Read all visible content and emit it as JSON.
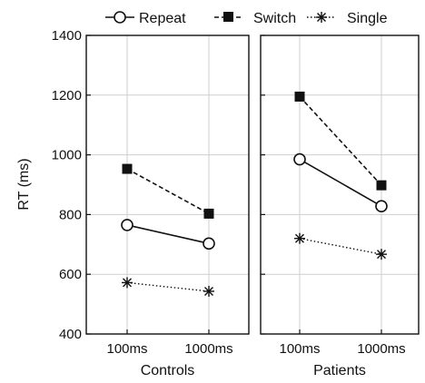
{
  "chart_data": {
    "type": "line",
    "ylabel": "RT (ms)",
    "ylim": [
      400,
      1400
    ],
    "yticks": [
      400,
      600,
      800,
      1000,
      1200,
      1400
    ],
    "grid": true,
    "legend": {
      "placement": "top",
      "entries": [
        {
          "label": "Repeat",
          "marker": "open-circle",
          "line": "solid"
        },
        {
          "label": "Switch",
          "marker": "filled-square",
          "line": "dashed"
        },
        {
          "label": "Single",
          "marker": "asterisk",
          "line": "dotted"
        }
      ]
    },
    "panels": [
      {
        "label": "Controls",
        "categories": [
          "100ms",
          "1000ms"
        ],
        "series": [
          {
            "name": "Repeat",
            "values": [
              765,
              703
            ]
          },
          {
            "name": "Switch",
            "values": [
              953,
              803
            ]
          },
          {
            "name": "Single",
            "values": [
              572,
              543
            ]
          }
        ]
      },
      {
        "label": "Patients",
        "categories": [
          "100ms",
          "1000ms"
        ],
        "series": [
          {
            "name": "Repeat",
            "values": [
              985,
              828
            ]
          },
          {
            "name": "Switch",
            "values": [
              1195,
              898
            ]
          },
          {
            "name": "Single",
            "values": [
              720,
              667
            ]
          }
        ]
      }
    ]
  }
}
